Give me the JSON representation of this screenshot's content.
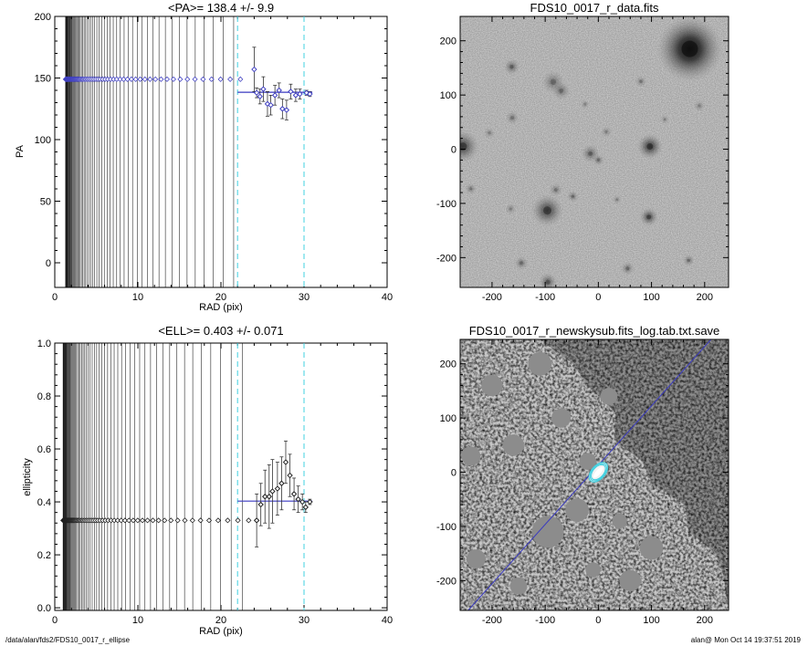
{
  "footer": {
    "left": "/data/alan/fds2/FDS10_0017_r_ellipse",
    "right": "alan@  Mon Oct 14 19:37:51 2019"
  },
  "colors": {
    "fit_line": "#3a3ac0",
    "cyan_dashed": "#40d0e0",
    "marker_pa": "#4040c0",
    "marker_ell": "#202020",
    "mask_gray": "#8c8c8c",
    "ellipse_cyan": "#40d0e0",
    "bright_source": "#111111"
  },
  "chart_data": [
    {
      "type": "scatter",
      "title": "<PA>= 138.4 +/-   9.9",
      "xlabel": "RAD (pix)",
      "ylabel": "PA",
      "xlim": [
        0,
        40
      ],
      "ylim": [
        -20,
        200
      ],
      "xticks": [
        0,
        10,
        20,
        30,
        40
      ],
      "yticks": [
        0,
        50,
        100,
        150,
        200
      ],
      "ytick_labels": [
        "0",
        "50",
        "100",
        "150",
        "200"
      ],
      "legend": "none",
      "grid": false,
      "vertical_lines_radii_approx": "dense vertical lines from x≈1.2 to x≈23 (black, spacing grows with radius)",
      "cyan_dashed_vlines": [
        22,
        30
      ],
      "mean_line": {
        "x": [
          22,
          31
        ],
        "y": 138.4
      },
      "flat_track": {
        "x_start": 1.3,
        "x_end": 23.2,
        "y": 149
      },
      "points": [
        {
          "x": 24.0,
          "y": 157,
          "err": 18
        },
        {
          "x": 24.3,
          "y": 138,
          "err": 4
        },
        {
          "x": 24.7,
          "y": 135,
          "err": 6
        },
        {
          "x": 25.1,
          "y": 141,
          "err": 10
        },
        {
          "x": 25.6,
          "y": 129,
          "err": 10
        },
        {
          "x": 26.0,
          "y": 128,
          "err": 8
        },
        {
          "x": 26.5,
          "y": 136,
          "err": 8
        },
        {
          "x": 27.0,
          "y": 140,
          "err": 6
        },
        {
          "x": 27.4,
          "y": 125,
          "err": 8
        },
        {
          "x": 27.9,
          "y": 124,
          "err": 8
        },
        {
          "x": 28.4,
          "y": 139,
          "err": 6
        },
        {
          "x": 29.0,
          "y": 136,
          "err": 5
        },
        {
          "x": 29.5,
          "y": 137,
          "err": 4
        },
        {
          "x": 30.3,
          "y": 138,
          "err": 2
        },
        {
          "x": 30.7,
          "y": 137,
          "err": 2
        }
      ]
    },
    {
      "type": "scatter",
      "title": "<ELL>= 0.403 +/-  0.071",
      "xlabel": "RAD (pix)",
      "ylabel": "ellipticity",
      "xlim": [
        0,
        40
      ],
      "ylim": [
        -0.01,
        1.0
      ],
      "xticks": [
        0,
        10,
        20,
        30,
        40
      ],
      "yticks": [
        0.0,
        0.2,
        0.4,
        0.6,
        0.8,
        1.0
      ],
      "ytick_labels": [
        "0.0",
        "0.2",
        "0.4",
        "0.6",
        "0.8",
        "1.0"
      ],
      "legend": "none",
      "grid": false,
      "cyan_dashed_vlines": [
        22,
        30
      ],
      "mean_line": {
        "x": [
          22,
          31
        ],
        "y": 0.403
      },
      "flat_track": {
        "x_start": 1.0,
        "x_end": 24.0,
        "y": 0.33
      },
      "points": [
        {
          "x": 24.3,
          "y": 0.33,
          "err": 0.1
        },
        {
          "x": 24.8,
          "y": 0.39,
          "err": 0.08
        },
        {
          "x": 25.3,
          "y": 0.42,
          "err": 0.1
        },
        {
          "x": 25.8,
          "y": 0.42,
          "err": 0.12
        },
        {
          "x": 26.2,
          "y": 0.44,
          "err": 0.12
        },
        {
          "x": 26.8,
          "y": 0.45,
          "err": 0.1
        },
        {
          "x": 27.3,
          "y": 0.47,
          "err": 0.1
        },
        {
          "x": 27.8,
          "y": 0.55,
          "err": 0.08
        },
        {
          "x": 28.3,
          "y": 0.5,
          "err": 0.08
        },
        {
          "x": 28.8,
          "y": 0.43,
          "err": 0.06
        },
        {
          "x": 29.3,
          "y": 0.41,
          "err": 0.05
        },
        {
          "x": 29.8,
          "y": 0.4,
          "err": 0.03
        },
        {
          "x": 30.2,
          "y": 0.38,
          "err": 0.02
        },
        {
          "x": 30.7,
          "y": 0.4,
          "err": 0.01
        }
      ]
    },
    {
      "type": "heatmap",
      "title": "FDS10_0017_r_data.fits",
      "xlabel": "",
      "ylabel": "",
      "xlim": [
        -260,
        245
      ],
      "ylim": [
        -255,
        245
      ],
      "xticks": [
        -200,
        -100,
        0,
        100,
        200
      ],
      "yticks": [
        -200,
        -100,
        0,
        100,
        200
      ],
      "sources": [
        {
          "x": 172,
          "y": 185,
          "r": 28,
          "dark": 0.95
        },
        {
          "x": -96,
          "y": -113,
          "r": 14,
          "dark": 0.55
        },
        {
          "x": 97,
          "y": 5,
          "r": 11,
          "dark": 0.6
        },
        {
          "x": 95,
          "y": -125,
          "r": 8,
          "dark": 0.5
        },
        {
          "x": -255,
          "y": 5,
          "r": 14,
          "dark": 0.55
        },
        {
          "x": -163,
          "y": 152,
          "r": 7,
          "dark": 0.35
        },
        {
          "x": -85,
          "y": 124,
          "r": 10,
          "dark": 0.3
        },
        {
          "x": -70,
          "y": 108,
          "r": 8,
          "dark": 0.3
        },
        {
          "x": -15,
          "y": -8,
          "r": 8,
          "dark": 0.35
        },
        {
          "x": -162,
          "y": 58,
          "r": 6,
          "dark": 0.25
        },
        {
          "x": -95,
          "y": -245,
          "r": 8,
          "dark": 0.4
        },
        {
          "x": -80,
          "y": -75,
          "r": 6,
          "dark": 0.25
        },
        {
          "x": 0,
          "y": -20,
          "r": 5,
          "dark": 0.3
        },
        {
          "x": -240,
          "y": -73,
          "r": 5,
          "dark": 0.25
        },
        {
          "x": -145,
          "y": -210,
          "r": 6,
          "dark": 0.3
        },
        {
          "x": 170,
          "y": -205,
          "r": 5,
          "dark": 0.3
        },
        {
          "x": 55,
          "y": -220,
          "r": 6,
          "dark": 0.3
        },
        {
          "x": 80,
          "y": 125,
          "r": 5,
          "dark": 0.25
        },
        {
          "x": -205,
          "y": 30,
          "r": 5,
          "dark": 0.2
        },
        {
          "x": 15,
          "y": 32,
          "r": 5,
          "dark": 0.2
        },
        {
          "x": -25,
          "y": 83,
          "r": 4,
          "dark": 0.2
        },
        {
          "x": 35,
          "y": -93,
          "r": 4,
          "dark": 0.2
        },
        {
          "x": 190,
          "y": 80,
          "r": 5,
          "dark": 0.2
        },
        {
          "x": -165,
          "y": -110,
          "r": 5,
          "dark": 0.2
        },
        {
          "x": -48,
          "y": -87,
          "r": 5,
          "dark": 0.3
        },
        {
          "x": 125,
          "y": 55,
          "r": 4,
          "dark": 0.2
        }
      ]
    },
    {
      "type": "heatmap",
      "title": "FDS10_0017_r_newskysub.fits_log.tab.txt.save",
      "xlabel": "",
      "ylabel": "",
      "xlim": [
        -260,
        245
      ],
      "ylim": [
        -255,
        245
      ],
      "xticks": [
        -200,
        -100,
        0,
        100,
        200
      ],
      "yticks": [
        -200,
        -100,
        0,
        100,
        200
      ],
      "major_axis_line": {
        "from": [
          -245,
          -255
        ],
        "to": [
          212,
          245
        ]
      },
      "ellipse": {
        "x": 0,
        "y": 0,
        "a": 22,
        "b": 13,
        "angle_deg": 48
      },
      "masked_blobs": [
        {
          "x": -95,
          "y": -110,
          "r": 30
        },
        {
          "x": -40,
          "y": -70,
          "r": 22
        },
        {
          "x": -160,
          "y": 50,
          "r": 20
        },
        {
          "x": -70,
          "y": 100,
          "r": 18
        },
        {
          "x": -20,
          "y": 20,
          "r": 16
        },
        {
          "x": 40,
          "y": -90,
          "r": 14
        },
        {
          "x": -150,
          "y": -210,
          "r": 16
        },
        {
          "x": -200,
          "y": 160,
          "r": 20
        },
        {
          "x": -240,
          "y": 30,
          "r": 18
        },
        {
          "x": -110,
          "y": 200,
          "r": 22
        },
        {
          "x": 60,
          "y": -200,
          "r": 20
        },
        {
          "x": -10,
          "y": -180,
          "r": 14
        },
        {
          "x": 100,
          "y": -140,
          "r": 22
        },
        {
          "x": -230,
          "y": -160,
          "r": 18
        },
        {
          "x": 20,
          "y": 140,
          "r": 16
        }
      ]
    }
  ]
}
